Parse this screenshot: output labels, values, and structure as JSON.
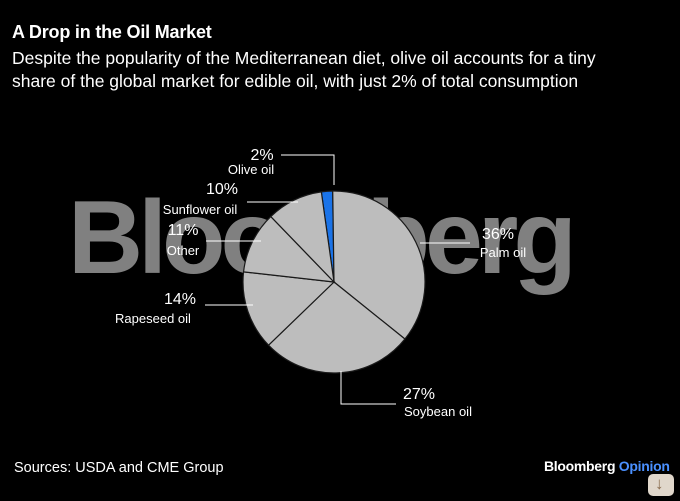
{
  "title": "A Drop in the Oil Market",
  "subtitle": "Despite the popularity of the Mediterranean diet, olive oil accounts for a tiny share of the global market for edible oil, with just 2% of total consumption",
  "watermark": "Bloomberg",
  "source": "Sources: USDA and CME Group",
  "brand": {
    "part1": "Bloomberg",
    "part2": "Opinion"
  },
  "chart_data": {
    "type": "pie",
    "title": "A Drop in the Oil Market",
    "slices": [
      {
        "name": "Olive oil",
        "value": 2,
        "label": "2%",
        "color": "#1a73e8"
      },
      {
        "name": "Palm oil",
        "value": 36,
        "label": "36%",
        "color": "#bdbdbd"
      },
      {
        "name": "Soybean oil",
        "value": 27,
        "label": "27%",
        "color": "#bdbdbd"
      },
      {
        "name": "Rapeseed oil",
        "value": 14,
        "label": "14%",
        "color": "#bdbdbd"
      },
      {
        "name": "Other",
        "value": 11,
        "label": "11%",
        "color": "#bdbdbd"
      },
      {
        "name": "Sunflower oil",
        "value": 10,
        "label": "10%",
        "color": "#bdbdbd"
      }
    ]
  }
}
